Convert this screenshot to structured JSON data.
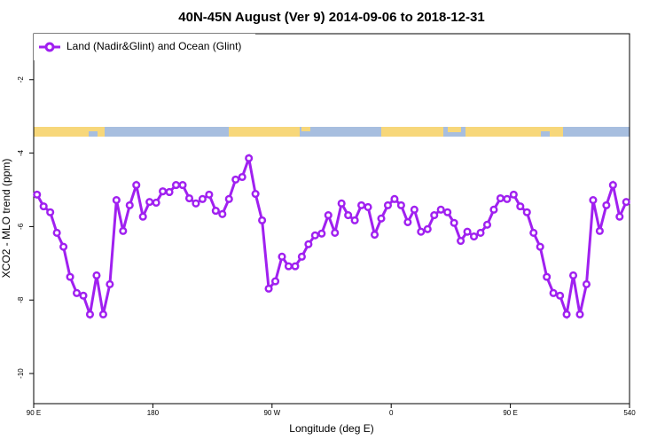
{
  "chart_data": {
    "type": "line",
    "title": "40N-45N August (Ver 9)   2014-09-06 to 2018-12-31",
    "x_label": "Longitude (deg E)",
    "y_label": "XCO2 - MLO trend (ppm)",
    "x": [
      92.5,
      97.5,
      102.5,
      107.5,
      112.5,
      117.5,
      122.5,
      127.5,
      132.5,
      137.5,
      142.5,
      147.5,
      152.5,
      157.5,
      162.5,
      167.5,
      172.5,
      177.5,
      182.5,
      187.5,
      192.5,
      197.5,
      202.5,
      207.5,
      212.5,
      217.5,
      222.5,
      227.5,
      232.5,
      237.5,
      242.5,
      247.5,
      252.5,
      257.5,
      262.5,
      267.5,
      272.5,
      277.5,
      282.5,
      287.5,
      292.5,
      297.5,
      302.5,
      307.5,
      312.5,
      317.5,
      322.5,
      327.5,
      332.5,
      337.5,
      342.5,
      347.5,
      352.5,
      357.5,
      362.5,
      367.5,
      372.5,
      377.5,
      382.5,
      387.5,
      392.5,
      397.5,
      402.5,
      407.5,
      412.5,
      417.5,
      422.5,
      427.5,
      432.5,
      437.5,
      442.5,
      447.5,
      452.5,
      457.5,
      462.5,
      467.5,
      472.5,
      477.5,
      482.5,
      487.5,
      492.5,
      497.5,
      502.5,
      507.5,
      512.5,
      517.5,
      522.5,
      527.5,
      532.5,
      537.5
    ],
    "series": [
      {
        "name": "Land (Nadir&Glint) and Ocean (Glint)",
        "color": "#a020f0",
        "values": [
          -5.13,
          -5.45,
          -5.61,
          -6.17,
          -6.55,
          -7.37,
          -7.81,
          -7.88,
          -8.39,
          -7.33,
          -8.39,
          -7.57,
          -5.28,
          -6.12,
          -5.42,
          -4.87,
          -5.73,
          -5.33,
          -5.35,
          -5.04,
          -5.06,
          -4.87,
          -4.87,
          -5.23,
          -5.37,
          -5.25,
          -5.13,
          -5.57,
          -5.66,
          -5.25,
          -4.72,
          -4.65,
          -4.14,
          -5.11,
          -5.83,
          -7.69,
          -7.49,
          -6.82,
          -7.08,
          -7.08,
          -6.82,
          -6.48,
          -6.24,
          -6.19,
          -5.69,
          -6.17,
          -5.37,
          -5.69,
          -5.83,
          -5.42,
          -5.47,
          -6.22,
          -5.78,
          -5.42,
          -5.25,
          -5.42,
          -5.88,
          -5.54,
          -6.14,
          -6.07,
          -5.69,
          -5.54,
          -5.61,
          -5.9,
          -6.39,
          -6.14,
          -6.27,
          -6.17,
          -5.95,
          -5.54,
          -5.23,
          -5.25,
          -5.13,
          -5.45,
          -5.61,
          -6.17,
          -6.55,
          -7.37,
          -7.81,
          -7.88,
          -8.39,
          -7.33,
          -8.39,
          -7.57,
          -5.28,
          -6.12,
          -5.42,
          -4.87,
          -5.73,
          -5.33
        ]
      }
    ],
    "xlim": [
      90,
      540
    ],
    "xticks": [
      {
        "value": 90,
        "label": "90 E"
      },
      180,
      {
        "value": 270,
        "label": "90 W"
      },
      {
        "value": 360,
        "label": "0"
      },
      {
        "value": 450,
        "label": "90 E"
      },
      540
    ],
    "ylim": [
      -10.82,
      -0.75
    ],
    "yticks": [
      -10,
      -8,
      -6,
      -4,
      -2
    ],
    "legend": "top-left"
  }
}
